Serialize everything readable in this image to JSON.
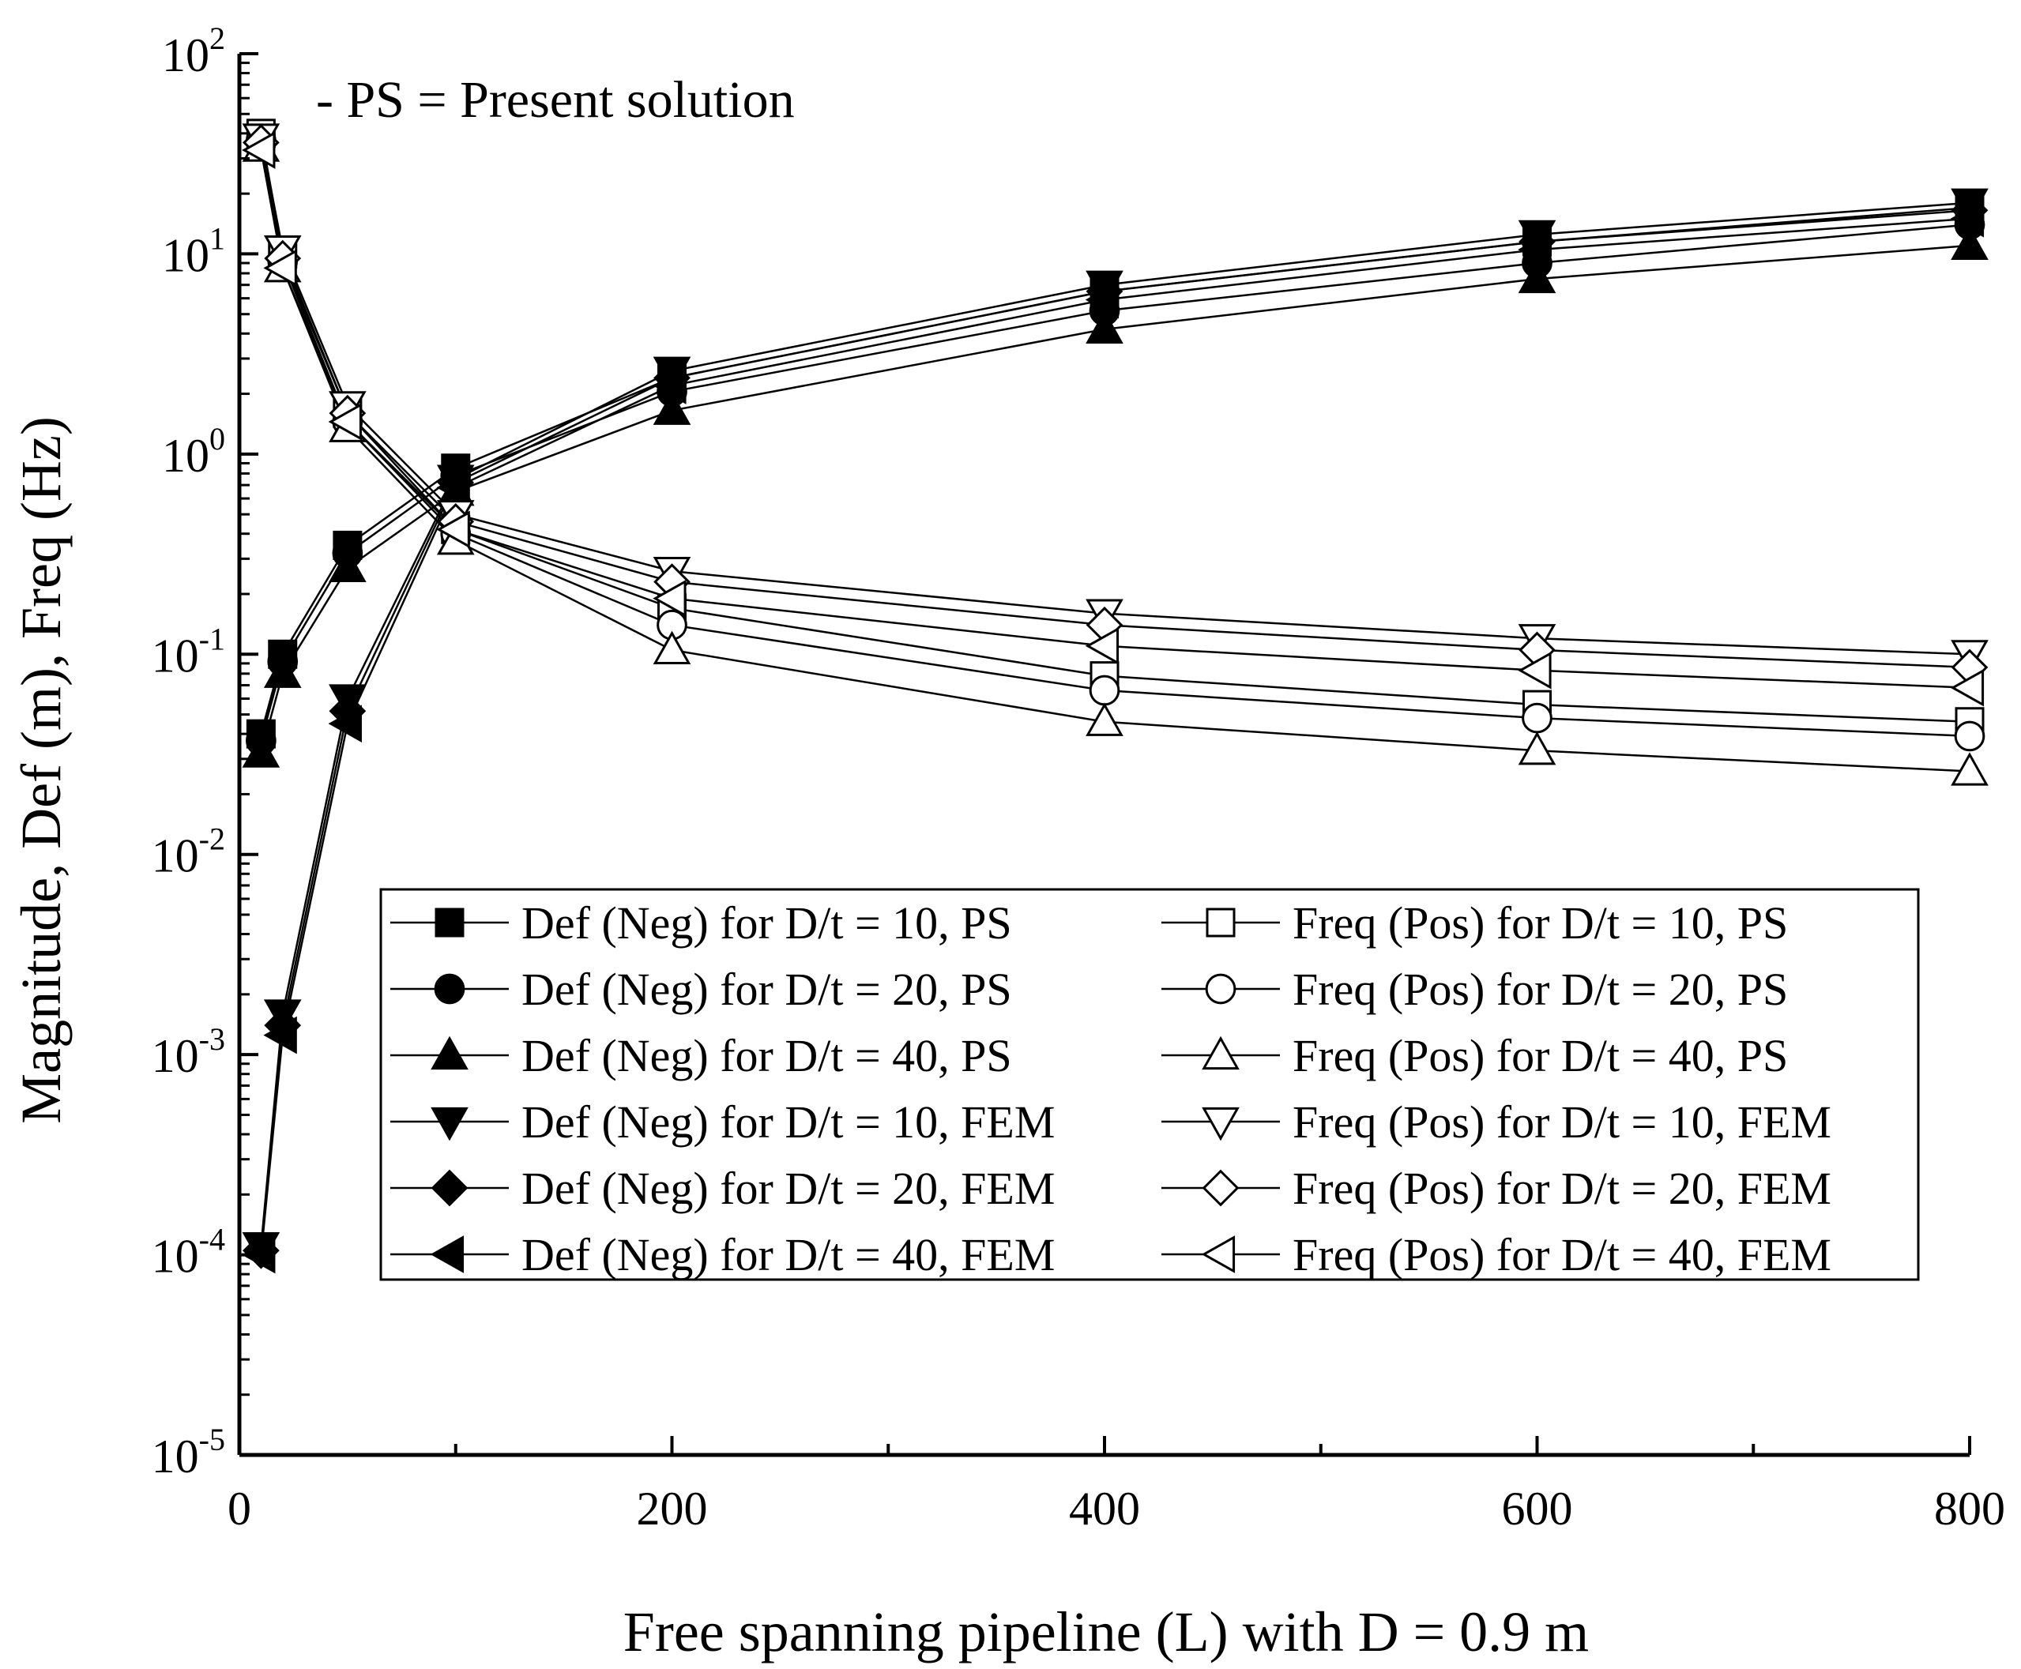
{
  "chart_data": {
    "type": "line",
    "yscale": "log",
    "annotation": "- PS = Present solution",
    "xlabel": "Free spanning pipeline (L) with D = 0.9 m",
    "ylabel": "Magnitude, Def (m), Freq (Hz)",
    "xlim": [
      0,
      800
    ],
    "ylim": [
      1e-05,
      100
    ],
    "x_ticks": [
      0,
      200,
      400,
      600,
      800
    ],
    "y_ticks": [
      {
        "value": 100,
        "base": "10",
        "exp": "2"
      },
      {
        "value": 10,
        "base": "10",
        "exp": "1"
      },
      {
        "value": 1,
        "base": "10",
        "exp": "0"
      },
      {
        "value": 0.1,
        "base": "10",
        "exp": "-1"
      },
      {
        "value": 0.01,
        "base": "10",
        "exp": "-2"
      },
      {
        "value": 0.001,
        "base": "10",
        "exp": "-3"
      },
      {
        "value": 0.0001,
        "base": "10",
        "exp": "-4"
      },
      {
        "value": 1e-05,
        "base": "10",
        "exp": "-5"
      }
    ],
    "x": [
      10,
      20,
      50,
      100,
      200,
      400,
      600,
      800
    ],
    "series": [
      {
        "name": "Def (Neg) for D/t = 10, PS",
        "marker": "square",
        "filled": true,
        "values": [
          0.04,
          0.1,
          0.35,
          0.85,
          2.4,
          6.5,
          11.5,
          17
        ]
      },
      {
        "name": "Def (Neg) for D/t = 20, PS",
        "marker": "circle",
        "filled": true,
        "values": [
          0.037,
          0.092,
          0.32,
          0.78,
          2.05,
          5.2,
          9,
          14
        ]
      },
      {
        "name": "Def (Neg) for D/t = 40, PS",
        "marker": "triangle-up",
        "filled": true,
        "values": [
          0.032,
          0.08,
          0.27,
          0.65,
          1.65,
          4.2,
          7.5,
          11
        ]
      },
      {
        "name": "Def (Neg) for D/t = 10, FEM",
        "marker": "triangle-down",
        "filled": true,
        "values": [
          0.00011,
          0.0016,
          0.06,
          0.75,
          2.6,
          7,
          12.5,
          18
        ]
      },
      {
        "name": "Def (Neg) for D/t = 20, FEM",
        "marker": "diamond",
        "filled": true,
        "values": [
          0.000105,
          0.0014,
          0.052,
          0.72,
          2.4,
          6.5,
          11.5,
          16.5
        ]
      },
      {
        "name": "Def (Neg) for D/t = 40, FEM",
        "marker": "triangle-left",
        "filled": true,
        "values": [
          0.0001,
          0.00125,
          0.045,
          0.68,
          2.2,
          5.9,
          10.5,
          15
        ]
      },
      {
        "name": "Freq (Pos) for D/t = 10, PS",
        "marker": "square",
        "filled": false,
        "values": [
          40,
          10,
          1.6,
          0.42,
          0.17,
          0.078,
          0.056,
          0.046
        ]
      },
      {
        "name": "Freq (Pos) for D/t = 20, PS",
        "marker": "circle",
        "filled": false,
        "values": [
          37,
          9.2,
          1.45,
          0.4,
          0.14,
          0.066,
          0.048,
          0.039
        ]
      },
      {
        "name": "Freq (Pos) for D/t = 40, PS",
        "marker": "triangle-up",
        "filled": false,
        "values": [
          34,
          8.5,
          1.35,
          0.37,
          0.105,
          0.046,
          0.033,
          0.026
        ]
      },
      {
        "name": "Freq (Pos) for D/t = 10, FEM",
        "marker": "triangle-down",
        "filled": false,
        "values": [
          38,
          10.5,
          1.75,
          0.5,
          0.26,
          0.16,
          0.12,
          0.1
        ]
      },
      {
        "name": "Freq (Pos) for D/t = 20, FEM",
        "marker": "diamond",
        "filled": false,
        "values": [
          36,
          9.5,
          1.6,
          0.46,
          0.23,
          0.14,
          0.105,
          0.086
        ]
      },
      {
        "name": "Freq (Pos) for D/t = 40, FEM",
        "marker": "triangle-left",
        "filled": false,
        "values": [
          33,
          8.5,
          1.45,
          0.42,
          0.19,
          0.11,
          0.083,
          0.068
        ]
      }
    ]
  }
}
